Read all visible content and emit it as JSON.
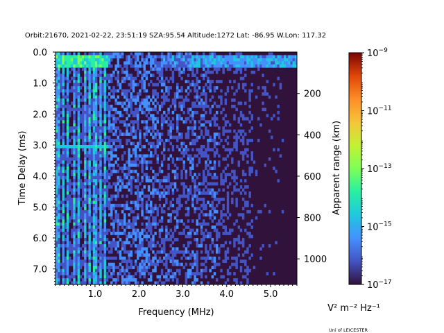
{
  "chart_data": {
    "type": "heatmap",
    "title": "Orbit:21670, 2021-02-22, 23:51:19 SZA:95.54 Altitude:1272 Lat: -86.95 W.Lon: 117.32",
    "xlabel": "Frequency (MHz)",
    "ylabel": "Time Delay (ms)",
    "y2label": "Apparent range (km)",
    "xlim": [
      0.1,
      5.6
    ],
    "ylim": [
      7.5,
      0.0
    ],
    "x_ticks": [
      1.0,
      2.0,
      3.0,
      4.0,
      5.0
    ],
    "x_tick_labels": [
      "1.0",
      "2.0",
      "3.0",
      "4.0",
      "5.0"
    ],
    "y_ticks": [
      0.0,
      1.0,
      2.0,
      3.0,
      4.0,
      5.0,
      6.0,
      7.0
    ],
    "y_tick_labels": [
      "0.0",
      "1.0",
      "2.0",
      "3.0",
      "4.0",
      "5.0",
      "6.0",
      "7.0"
    ],
    "y2_ticks": [
      200,
      400,
      600,
      800,
      1000
    ],
    "y2_tick_labels": [
      "200",
      "400",
      "600",
      "800",
      "1000"
    ],
    "y2_scale": "range_km = 149.9 * time_delay_ms - 0.5",
    "colorbar": {
      "scale": "log",
      "range": [
        1e-17,
        1e-09
      ],
      "colormap": "turbo",
      "tick_exponents": [
        -17,
        -15,
        -13,
        -11,
        -9
      ],
      "tick_base": "10",
      "unit_label": "V² m⁻² Hz⁻¹"
    },
    "grid": false,
    "description": "Low-frequency vertical bands below ~1.3 MHz with high intensity; strong horizontal surface echo near 0.2 ms; sparse noisy returns decreasing toward 5.5 MHz."
  },
  "footer": "Uni of LEICESTER"
}
